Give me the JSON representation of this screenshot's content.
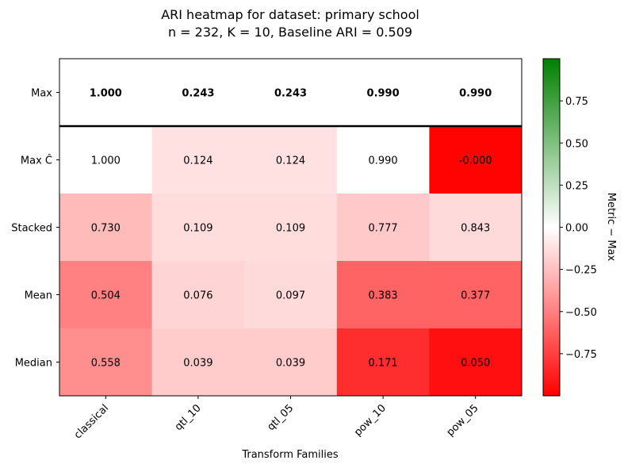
{
  "chart_data": {
    "type": "heatmap",
    "title_line1": "ARI heatmap for dataset: primary school",
    "title_line2": "n = 232, K = 10, Baseline ARI = 0.509",
    "xlabel": "Transform Families",
    "columns": [
      "classical",
      "qtl_10",
      "qtl_05",
      "pow_10",
      "pow_05"
    ],
    "rows": [
      "Max",
      "Max Ĉ",
      "Stacked",
      "Mean",
      "Median"
    ],
    "values": [
      [
        1.0,
        0.243,
        0.243,
        0.99,
        0.99
      ],
      [
        1.0,
        0.124,
        0.124,
        0.99,
        -0.0
      ],
      [
        0.73,
        0.109,
        0.109,
        0.777,
        0.843
      ],
      [
        0.504,
        0.076,
        0.097,
        0.383,
        0.377
      ],
      [
        0.558,
        0.039,
        0.039,
        0.171,
        0.05
      ]
    ],
    "labels": [
      [
        "1.000",
        "0.243",
        "0.243",
        "0.990",
        "0.990"
      ],
      [
        "1.000",
        "0.124",
        "0.124",
        "0.990",
        "-0.000"
      ],
      [
        "0.730",
        "0.109",
        "0.109",
        "0.777",
        "0.843"
      ],
      [
        "0.504",
        "0.076",
        "0.097",
        "0.383",
        "0.377"
      ],
      [
        "0.558",
        "0.039",
        "0.039",
        "0.171",
        "0.050"
      ]
    ],
    "colorbar": {
      "label": "Metric − Max",
      "range": [
        -1,
        1
      ],
      "ticks": [
        0.75,
        0.5,
        0.25,
        0.0,
        -0.25,
        -0.5,
        -0.75
      ],
      "tick_labels": [
        "0.75",
        "0.50",
        "0.25",
        "0.00",
        "−0.25",
        "−0.50",
        "−0.75"
      ],
      "colors": {
        "low": "#ff0000",
        "mid": "#ffffff",
        "high": "#008000"
      }
    },
    "max_row_highlight": true
  }
}
